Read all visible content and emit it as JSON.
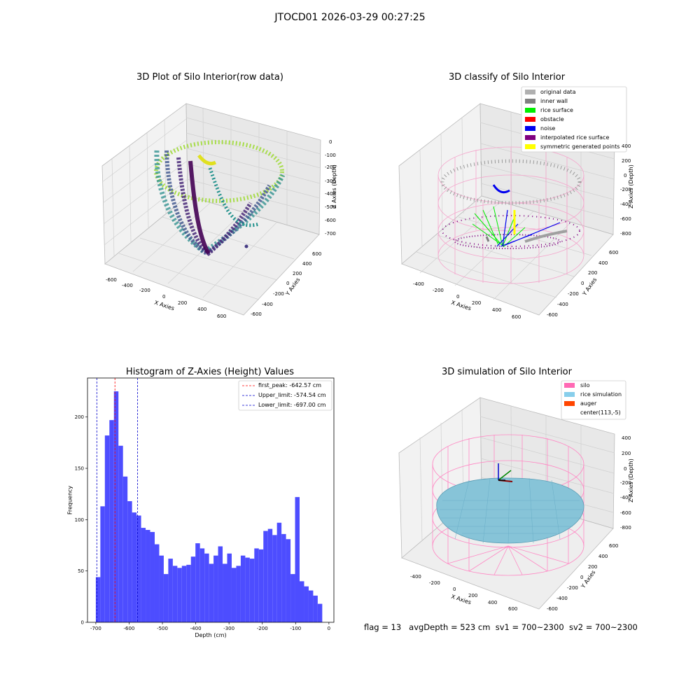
{
  "suptitle": "JTOCD01 2026-03-29 00:27:25",
  "panels": {
    "raw": {
      "title": "3D Plot of Silo Interior(row data)",
      "xlabel": "X Axies",
      "ylabel": "Y Axies",
      "zlabel": "Z Axies (Depth)",
      "x_ticks": [
        "-600",
        "-400",
        "-200",
        "0",
        "200",
        "400",
        "600"
      ],
      "y_ticks": [
        "-600",
        "-400",
        "-200",
        "0",
        "200",
        "400",
        "600"
      ],
      "z_ticks": [
        "0",
        "-100",
        "-200",
        "-300",
        "-400",
        "-500",
        "-600",
        "-700"
      ],
      "colormap": "viridis"
    },
    "classify": {
      "title": "3D classify of Silo Interior",
      "xlabel": "X Axies",
      "ylabel": "Y Axies",
      "zlabel": "Z Axies (Depth)",
      "x_ticks": [
        "-400",
        "-200",
        "0",
        "200",
        "400",
        "600"
      ],
      "y_ticks": [
        "-600",
        "-400",
        "-200",
        "0",
        "200",
        "400",
        "600"
      ],
      "z_ticks": [
        "400",
        "200",
        "0",
        "-200",
        "-400",
        "-600",
        "-800"
      ],
      "legend": [
        {
          "label": "original data",
          "color": "#b0b0b0"
        },
        {
          "label": "inner wall",
          "color": "#808080"
        },
        {
          "label": "rice surface",
          "color": "#00ee00"
        },
        {
          "label": "obstacle",
          "color": "#ff0000"
        },
        {
          "label": "noise",
          "color": "#0000ee"
        },
        {
          "label": "interpolated rice surface",
          "color": "#800080"
        },
        {
          "label": "symmetric generated points",
          "color": "#ffff00"
        }
      ]
    },
    "simulation": {
      "title": "3D simulation of Silo Interior",
      "xlabel": "X Axies",
      "ylabel": "Y Axies",
      "zlabel": "Z Axies (Depth)",
      "x_ticks": [
        "-400",
        "-200",
        "0",
        "200",
        "400",
        "600"
      ],
      "y_ticks": [
        "-600",
        "-400",
        "-200",
        "0",
        "200",
        "400",
        "600"
      ],
      "z_ticks": [
        "400",
        "200",
        "0",
        "-200",
        "-400",
        "-600",
        "-800"
      ],
      "legend": [
        {
          "label": "silo",
          "color": "#ff69b4"
        },
        {
          "label": "rice simulation",
          "color": "#87ceeb"
        },
        {
          "label": "auger",
          "color": "#ff4500"
        },
        {
          "label": "center(113,-5)",
          "color": null
        }
      ]
    }
  },
  "chart_data": {
    "type": "bar",
    "title": "Histogram of Z-Axies (Height) Values",
    "xlabel": "Depth (cm)",
    "ylabel": "Frequency",
    "xlim": [
      -725,
      15
    ],
    "ylim": [
      0,
      238
    ],
    "x_ticks": [
      -700,
      -600,
      -500,
      -400,
      -300,
      -200,
      -100,
      0
    ],
    "y_ticks": [
      0,
      50,
      100,
      150,
      200
    ],
    "bin_start": -700,
    "bin_width": 13.6,
    "values": [
      44,
      113,
      182,
      197,
      225,
      172,
      142,
      118,
      107,
      104,
      92,
      90,
      88,
      76,
      65,
      47,
      62,
      55,
      53,
      55,
      56,
      64,
      77,
      72,
      67,
      57,
      65,
      74,
      57,
      67,
      53,
      55,
      65,
      63,
      62,
      72,
      71,
      89,
      91,
      85,
      97,
      86,
      81,
      47,
      122,
      40,
      35,
      31,
      26,
      18
    ],
    "bar_color": "#4d4dff",
    "lines": [
      {
        "label": "first_peak: -642.57 cm",
        "x": -642.57,
        "color": "#ff0000"
      },
      {
        "label": "Upper_limit: -574.54 cm",
        "x": -574.54,
        "color": "#0000cc"
      },
      {
        "label": "Lower_limit: -697.00 cm",
        "x": -697.0,
        "color": "#0000cc"
      }
    ],
    "legend_position": "top-right"
  },
  "status": {
    "flag": "flag = 13",
    "avg_depth": "avgDepth = 523 cm",
    "sv1": "sv1 = 700~2300",
    "sv2": "sv2 = 700~2300"
  }
}
